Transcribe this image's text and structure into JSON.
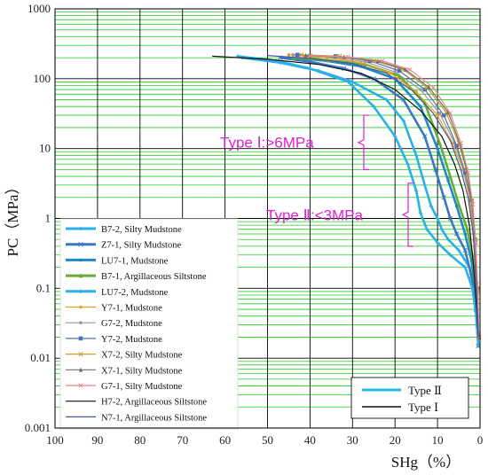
{
  "chart_data": {
    "type": "line",
    "xlabel": "SHg（%）",
    "ylabel": "PC（MPa）",
    "x_axis": {
      "reversed": true,
      "range": [
        100,
        0
      ],
      "ticks": [
        100,
        90,
        80,
        70,
        60,
        50,
        40,
        30,
        20,
        10,
        0
      ]
    },
    "y_axis": {
      "scale": "log",
      "range": [
        0.001,
        1000
      ],
      "tick_labels": [
        "1000",
        "100",
        "10",
        "1",
        "0.1",
        "0.01",
        "0.001"
      ],
      "tick_values": [
        1000,
        100,
        10,
        1,
        0.1,
        0.01,
        0.001
      ]
    },
    "grid": {
      "major_color": "#000000",
      "minor_color": "#22cc22"
    },
    "annotations": [
      {
        "text": "Type Ⅰ:>6MPa",
        "color": "#e020d0",
        "bracket_y_range": [
          5,
          30
        ]
      },
      {
        "text": "Type Ⅱ:<3MPa",
        "color": "#e020d0",
        "bracket_y_range": [
          0.4,
          3.2
        ]
      }
    ],
    "legend_series_placement": "bottom-left",
    "legend_type_placement": "bottom-right",
    "type_legend": [
      {
        "name": "Type Ⅱ",
        "color": "#26b6e8"
      },
      {
        "name": "Type Ⅰ",
        "color": "#111111"
      }
    ],
    "series": [
      {
        "name": "B7-2, Silty Mudstone",
        "type": "Ⅱ",
        "color": "#2ab0e8",
        "marker": "plus",
        "x": [
          56,
          47,
          38,
          30,
          22,
          18,
          15,
          13,
          11.5,
          10,
          9,
          7.5,
          5,
          2.5,
          1,
          0.4
        ],
        "y": [
          200,
          170,
          130,
          90,
          50,
          25,
          8,
          3,
          1.5,
          1,
          0.7,
          0.5,
          0.35,
          0.2,
          0.08,
          0.02
        ]
      },
      {
        "name": "Z7-1, Silty Mudstone",
        "type": "Ⅱ",
        "color": "#3a78c2",
        "marker": "x",
        "x": [
          47,
          40,
          32,
          25,
          18,
          13,
          10.5,
          8.5,
          7,
          5.5,
          3.5,
          2,
          1,
          0.4
        ],
        "y": [
          200,
          175,
          140,
          100,
          50,
          15,
          5,
          2,
          1,
          0.6,
          0.35,
          0.15,
          0.05,
          0.015
        ]
      },
      {
        "name": "LU7-1, Mudstone",
        "type": "Ⅱ",
        "color": "#1e88c8",
        "marker": "dot",
        "x": [
          45,
          36,
          28,
          20,
          14,
          10,
          7.5,
          5.5,
          3.5,
          2,
          1,
          0.4
        ],
        "y": [
          200,
          180,
          150,
          100,
          40,
          10,
          3.5,
          1.5,
          0.6,
          0.25,
          0.08,
          0.02
        ]
      },
      {
        "name": "B7-1, Argillaceous Siltstone",
        "type": "Ⅱ",
        "color": "#6aaa3a",
        "marker": "triangle",
        "x": [
          44,
          36,
          27,
          19,
          13,
          9.5,
          7,
          5,
          3,
          1.8,
          0.9,
          0.4
        ],
        "y": [
          200,
          185,
          160,
          110,
          45,
          12,
          4,
          1.6,
          0.7,
          0.3,
          0.09,
          0.02
        ]
      },
      {
        "name": "LU7-2, Mudstone",
        "type": "Ⅱ",
        "color": "#2ab0e8",
        "marker": "plus",
        "x": [
          57,
          48,
          40,
          31,
          25,
          20,
          17,
          15,
          14,
          12.5,
          10,
          7,
          3.5,
          1.8,
          0.9,
          0.4
        ],
        "y": [
          210,
          180,
          140,
          90,
          40,
          15,
          6,
          2.5,
          1.2,
          0.7,
          0.45,
          0.3,
          0.2,
          0.1,
          0.04,
          0.015
        ]
      },
      {
        "name": "Y7-1, Mudstone",
        "type": "Ⅰ",
        "color": "#e8a020",
        "marker": "dot",
        "x": [
          45,
          36,
          28,
          21,
          15,
          10,
          6.5,
          4,
          2.5,
          1.5,
          0.8,
          0.4
        ],
        "y": [
          220,
          200,
          170,
          120,
          65,
          30,
          12,
          5,
          2,
          0.6,
          0.12,
          0.02
        ]
      },
      {
        "name": "G7-2, Mudstone",
        "type": "Ⅰ",
        "color": "#9a9a9a",
        "marker": "dot",
        "x": [
          44,
          35,
          27,
          20,
          14,
          9.5,
          6,
          3.8,
          2.2,
          1.3,
          0.7,
          0.35
        ],
        "y": [
          220,
          205,
          175,
          125,
          70,
          32,
          12,
          5,
          2,
          0.6,
          0.12,
          0.02
        ]
      },
      {
        "name": "Y7-2, Mudstone",
        "type": "Ⅰ",
        "color": "#5070b0",
        "marker": "square",
        "x": [
          43,
          34,
          26,
          19,
          13,
          8.5,
          5.5,
          3.5,
          2,
          1.2,
          0.6,
          0.3
        ],
        "y": [
          220,
          210,
          180,
          130,
          70,
          30,
          11,
          4.5,
          1.8,
          0.5,
          0.1,
          0.02
        ]
      },
      {
        "name": "X7-2, Silty Mudstone",
        "type": "Ⅰ",
        "color": "#c8a030",
        "marker": "x",
        "x": [
          42,
          33,
          25,
          18,
          12.5,
          8,
          5,
          3.2,
          1.9,
          1.1,
          0.6,
          0.3
        ],
        "y": [
          220,
          210,
          180,
          135,
          75,
          33,
          12,
          5,
          1.8,
          0.5,
          0.1,
          0.02
        ]
      },
      {
        "name": "X7-1, Silty Mudstone",
        "type": "Ⅰ",
        "color": "#707070",
        "marker": "triangle",
        "x": [
          41,
          32,
          24,
          17.5,
          12,
          7.5,
          4.8,
          3,
          1.8,
          1,
          0.55,
          0.3
        ],
        "y": [
          215,
          205,
          180,
          135,
          75,
          33,
          12,
          4.5,
          1.6,
          0.45,
          0.09,
          0.02
        ]
      },
      {
        "name": "G7-1, Silty Mudstone",
        "type": "Ⅰ",
        "color": "#e88888",
        "marker": "x",
        "x": [
          40,
          31,
          23,
          16.5,
          11,
          7,
          4.5,
          2.8,
          1.7,
          1,
          0.5,
          0.3
        ],
        "y": [
          215,
          205,
          180,
          135,
          75,
          32,
          12,
          4.5,
          1.6,
          0.45,
          0.09,
          0.02
        ]
      },
      {
        "name": "H7-2, Argillaceous Siltstone",
        "type": "Ⅰ",
        "color": "#111111",
        "marker": "none",
        "x": [
          63,
          50,
          38,
          28,
          20,
          14,
          9,
          6,
          4,
          2.5,
          1.5,
          0.8,
          0.4
        ],
        "y": [
          210,
          190,
          160,
          120,
          70,
          35,
          15,
          6,
          2.5,
          0.8,
          0.2,
          0.05,
          0.02
        ]
      },
      {
        "name": "N7-1, Argillaceous Siltstone",
        "type": "Ⅰ",
        "color": "#4a55a0",
        "marker": "none",
        "x": [
          50,
          40,
          30,
          22,
          16,
          11,
          7,
          4.5,
          2.8,
          1.6,
          0.9,
          0.4
        ],
        "y": [
          215,
          195,
          165,
          120,
          68,
          32,
          13,
          5,
          2,
          0.6,
          0.12,
          0.02
        ]
      }
    ]
  }
}
